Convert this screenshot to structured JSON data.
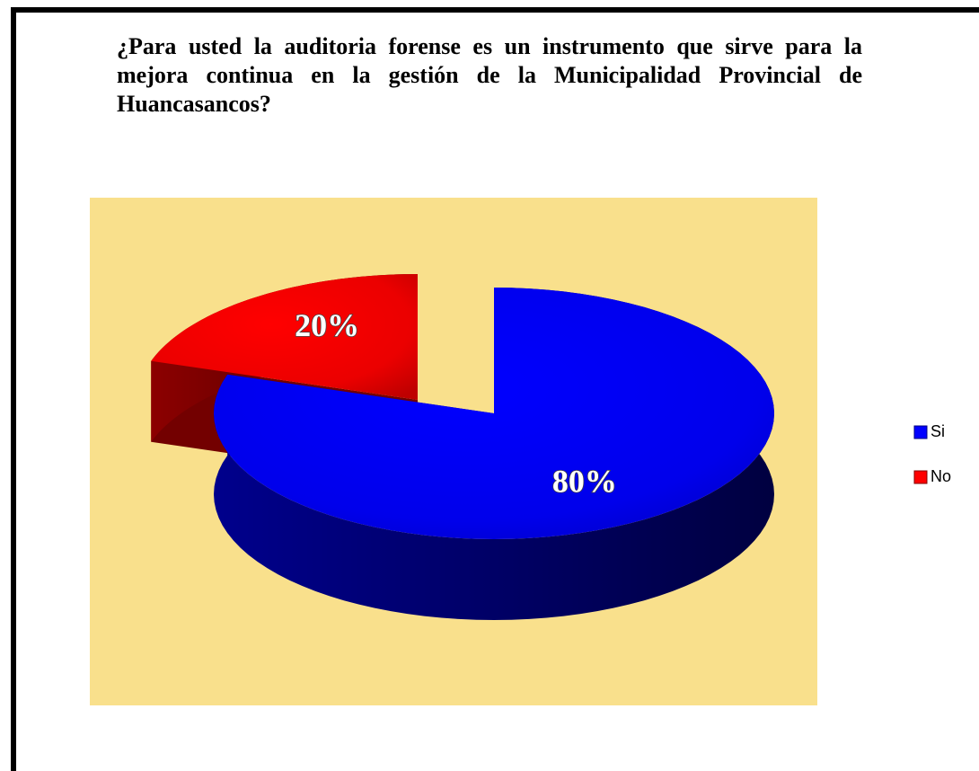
{
  "chart_data": {
    "type": "pie",
    "title": "¿Para usted la auditoria forense es un instrumento que sirve para la mejora continua en la gestión de la Municipalidad Provincial de Huancasancos?",
    "categories": [
      "Si",
      "No"
    ],
    "series": [
      {
        "values": [
          80,
          20
        ],
        "value_labels": [
          "80%",
          "20%"
        ],
        "colors": [
          "#0000ff",
          "#ff0000"
        ]
      }
    ],
    "background": "#f9e08c",
    "legend": "right"
  }
}
